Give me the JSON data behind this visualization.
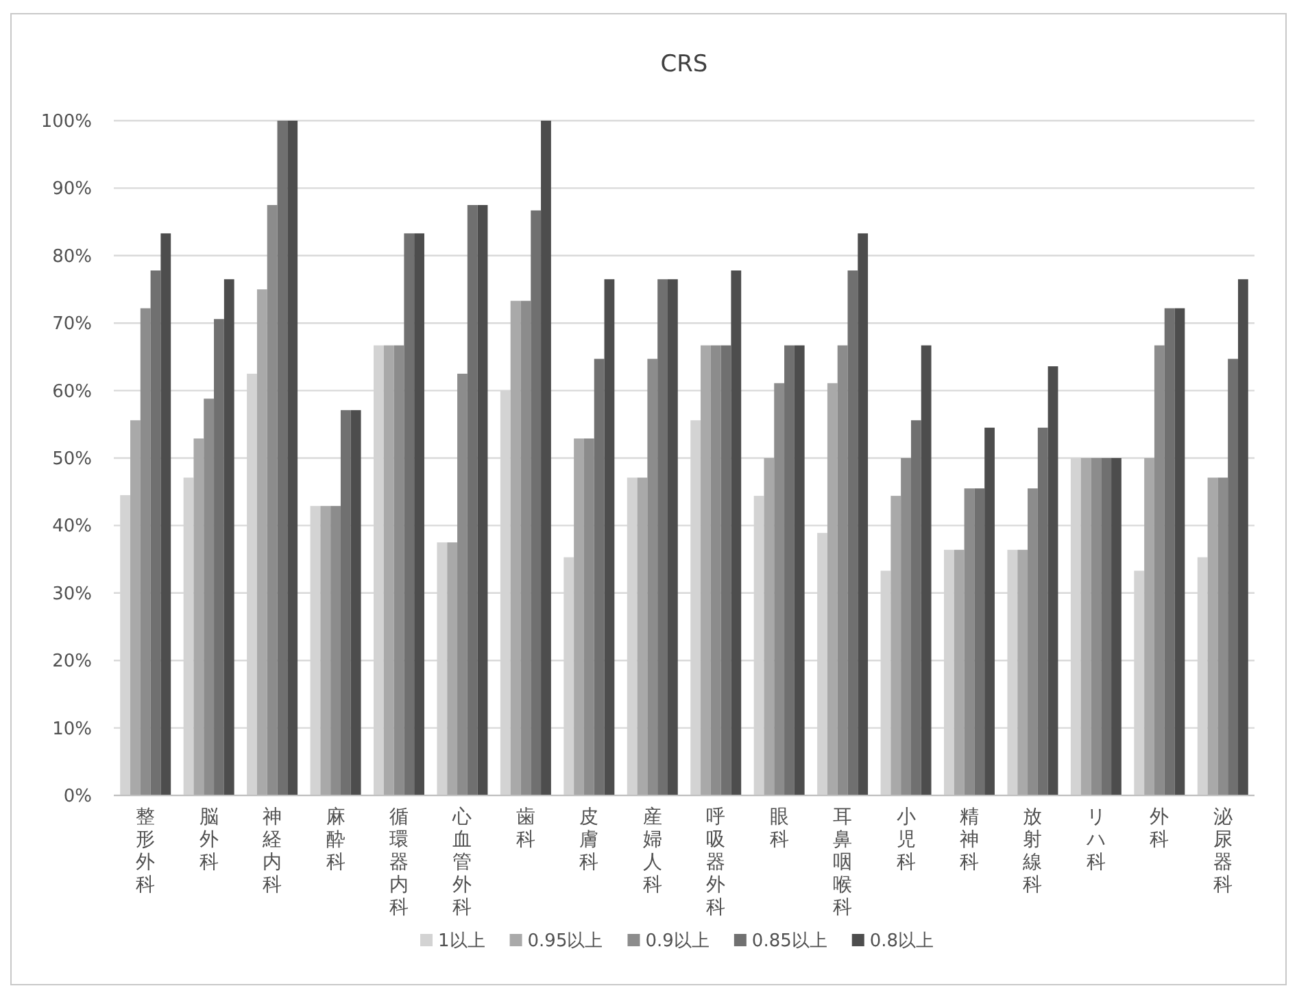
{
  "chart_data": {
    "type": "bar",
    "title": "CRS",
    "categories": [
      "整形外科",
      "脳外科",
      "神経内科",
      "麻酔科",
      "循環器内科",
      "心血管外科",
      "歯科",
      "皮膚科",
      "産婦人科",
      "呼吸器外科",
      "眼科",
      "耳鼻咽喉科",
      "小児科",
      "精神科",
      "放射線科",
      "リハ科",
      "外科",
      "泌尿器科"
    ],
    "series": [
      {
        "name": "1以上",
        "color": "#d3d3d3",
        "values": [
          44.5,
          47.1,
          62.5,
          42.9,
          66.7,
          37.5,
          60,
          35.3,
          47.1,
          55.6,
          44.4,
          38.9,
          33.3,
          36.4,
          36.4,
          50,
          33.3,
          35.3
        ]
      },
      {
        "name": "0.95以上",
        "color": "#a9a9a9",
        "values": [
          55.6,
          52.9,
          75,
          42.9,
          66.7,
          37.5,
          73.3,
          52.9,
          47.1,
          66.7,
          50,
          61.1,
          44.4,
          36.4,
          36.4,
          50,
          50,
          47.1
        ]
      },
      {
        "name": "0.9以上",
        "color": "#8c8c8c",
        "values": [
          72.2,
          58.8,
          87.5,
          42.9,
          66.7,
          62.5,
          73.3,
          52.9,
          64.7,
          66.7,
          61.1,
          66.7,
          50,
          45.5,
          45.5,
          50,
          66.7,
          47.1
        ]
      },
      {
        "name": "0.85以上",
        "color": "#707070",
        "values": [
          77.8,
          70.6,
          100,
          57.1,
          83.3,
          87.5,
          86.7,
          64.7,
          76.5,
          66.7,
          66.7,
          77.8,
          55.6,
          45.5,
          54.5,
          50,
          72.2,
          64.7
        ]
      },
      {
        "name": "0.8以上",
        "color": "#4d4d4d",
        "values": [
          83.3,
          76.5,
          100,
          57.1,
          83.3,
          87.5,
          100,
          76.5,
          76.5,
          77.8,
          66.7,
          83.3,
          66.7,
          54.5,
          63.6,
          50,
          72.2,
          76.5
        ]
      }
    ],
    "ylim": [
      0,
      100
    ],
    "yticks": [
      {
        "value": 0,
        "label": "0%"
      },
      {
        "value": 10,
        "label": "10%"
      },
      {
        "value": 20,
        "label": "20%"
      },
      {
        "value": 30,
        "label": "30%"
      },
      {
        "value": 40,
        "label": "40%"
      },
      {
        "value": 50,
        "label": "50%"
      },
      {
        "value": 60,
        "label": "60%"
      },
      {
        "value": 70,
        "label": "70%"
      },
      {
        "value": 80,
        "label": "80%"
      },
      {
        "value": 90,
        "label": "90%"
      },
      {
        "value": 100,
        "label": "100%"
      }
    ],
    "grid": "y",
    "legend": "bottom"
  }
}
